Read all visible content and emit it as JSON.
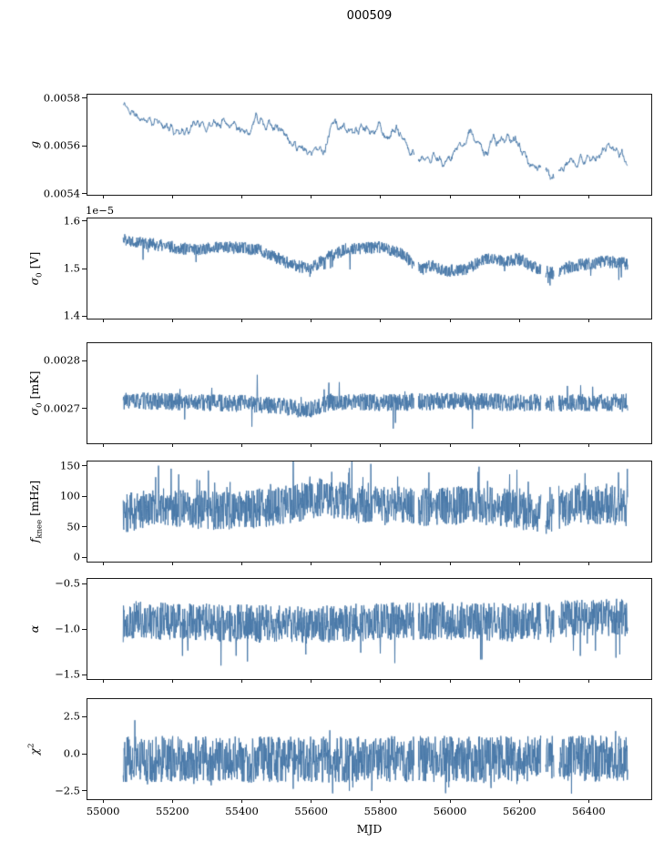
{
  "title": "000509",
  "chart_data": {
    "type": "line",
    "xlabel": "MJD",
    "xlim": [
      54955,
      56580
    ],
    "x_data_range": [
      55058,
      56512
    ],
    "xticks": [
      55000,
      55200,
      55400,
      55600,
      55800,
      56000,
      56200,
      56400
    ],
    "xtick_labels": [
      "55000",
      "55200",
      "55400",
      "55600",
      "55800",
      "56000",
      "56200",
      "56400"
    ],
    "line_color": "#4878a8",
    "grid": false,
    "legend": false,
    "samples_per_panel": 1600,
    "gaps": [
      [
        55897,
        55909
      ],
      [
        56262,
        56275
      ],
      [
        56300,
        56313
      ]
    ],
    "panels": [
      {
        "name": "g",
        "label": {
          "pre": "g",
          "sub": "",
          "sup": "",
          "post": ""
        },
        "offset_label": null,
        "ylim": [
          0.005395,
          0.005815
        ],
        "yticks": [
          0.0054,
          0.0056,
          0.0058
        ],
        "ytick_labels": [
          "0.0054",
          "0.0056",
          "0.0058"
        ],
        "trend": [
          [
            55060,
            0.00577
          ],
          [
            55100,
            0.00572
          ],
          [
            55150,
            0.0057
          ],
          [
            55200,
            0.00567
          ],
          [
            55250,
            0.00566
          ],
          [
            55270,
            0.00571
          ],
          [
            55300,
            0.00568
          ],
          [
            55350,
            0.0057
          ],
          [
            55400,
            0.00569
          ],
          [
            55420,
            0.00564
          ],
          [
            55440,
            0.00573
          ],
          [
            55470,
            0.0057
          ],
          [
            55520,
            0.00566
          ],
          [
            55560,
            0.0056
          ],
          [
            55600,
            0.00558
          ],
          [
            55640,
            0.00559
          ],
          [
            55660,
            0.0057
          ],
          [
            55700,
            0.00566
          ],
          [
            55750,
            0.00567
          ],
          [
            55800,
            0.00568
          ],
          [
            55820,
            0.00563
          ],
          [
            55850,
            0.00567
          ],
          [
            55870,
            0.0056
          ],
          [
            55900,
            0.00554
          ],
          [
            55950,
            0.00555
          ],
          [
            56000,
            0.00554
          ],
          [
            56030,
            0.0056
          ],
          [
            56060,
            0.00566
          ],
          [
            56100,
            0.00557
          ],
          [
            56130,
            0.00562
          ],
          [
            56160,
            0.00563
          ],
          [
            56200,
            0.00561
          ],
          [
            56230,
            0.00552
          ],
          [
            56260,
            0.00551
          ],
          [
            56300,
            0.00547
          ],
          [
            56330,
            0.00552
          ],
          [
            56370,
            0.00553
          ],
          [
            56420,
            0.00555
          ],
          [
            56460,
            0.0056
          ],
          [
            56490,
            0.00558
          ],
          [
            56510,
            0.00553
          ]
        ],
        "noise": 6e-05,
        "smooth": 9,
        "spikes": null,
        "seed": 11
      },
      {
        "name": "sigma0_V",
        "label": {
          "pre": "σ",
          "sub": "0",
          "sup": "",
          "post": " [V]"
        },
        "offset_label": "1e−5",
        "ylim": [
          1.395,
          1.605
        ],
        "yticks": [
          1.4,
          1.5,
          1.6
        ],
        "ytick_labels": [
          "1.4",
          "1.5",
          "1.6"
        ],
        "trend": [
          [
            55060,
            1.562
          ],
          [
            55150,
            1.55
          ],
          [
            55250,
            1.54
          ],
          [
            55350,
            1.545
          ],
          [
            55450,
            1.54
          ],
          [
            55520,
            1.515
          ],
          [
            55560,
            1.505
          ],
          [
            55600,
            1.5
          ],
          [
            55650,
            1.525
          ],
          [
            55700,
            1.54
          ],
          [
            55800,
            1.545
          ],
          [
            55870,
            1.53
          ],
          [
            55900,
            1.5
          ],
          [
            55950,
            1.505
          ],
          [
            56000,
            1.495
          ],
          [
            56050,
            1.5
          ],
          [
            56100,
            1.52
          ],
          [
            56150,
            1.515
          ],
          [
            56200,
            1.52
          ],
          [
            56250,
            1.5
          ],
          [
            56300,
            1.49
          ],
          [
            56350,
            1.505
          ],
          [
            56400,
            1.51
          ],
          [
            56450,
            1.515
          ],
          [
            56510,
            1.51
          ]
        ],
        "noise": 0.013,
        "smooth": 1,
        "spikes": {
          "prob": 0.012,
          "amp": 0.035,
          "sign": -1
        },
        "seed": 22
      },
      {
        "name": "sigma0_mK",
        "label": {
          "pre": "σ",
          "sub": "0",
          "sup": "",
          "post": " [mK]"
        },
        "offset_label": null,
        "ylim": [
          0.002628,
          0.002836
        ],
        "yticks": [
          0.0027,
          0.0028
        ],
        "ytick_labels": [
          "0.0027",
          "0.0028"
        ],
        "trend": [
          [
            55060,
            0.002716
          ],
          [
            55250,
            0.002714
          ],
          [
            55420,
            0.00271
          ],
          [
            55530,
            0.002704
          ],
          [
            55580,
            0.002696
          ],
          [
            55620,
            0.002704
          ],
          [
            55660,
            0.002714
          ],
          [
            55800,
            0.002713
          ],
          [
            55950,
            0.002714
          ],
          [
            56000,
            0.002716
          ],
          [
            56150,
            0.002713
          ],
          [
            56300,
            0.002712
          ],
          [
            56510,
            0.002713
          ]
        ],
        "noise": 1.8e-05,
        "smooth": 1,
        "spikes": {
          "prob": 0.015,
          "amp": 5e-05,
          "sign": 0
        },
        "seed": 33
      },
      {
        "name": "f_knee",
        "label": {
          "pre": "f",
          "sub": "knee",
          "sup": "",
          "post": " [mHz]"
        },
        "offset_label": null,
        "ylim": [
          -7,
          157
        ],
        "yticks": [
          0,
          50,
          100,
          150
        ],
        "ytick_labels": [
          "0",
          "50",
          "100",
          "150"
        ],
        "trend": [
          [
            55060,
            72
          ],
          [
            55150,
            82
          ],
          [
            55250,
            78
          ],
          [
            55350,
            76
          ],
          [
            55450,
            80
          ],
          [
            55550,
            88
          ],
          [
            55620,
            98
          ],
          [
            55680,
            95
          ],
          [
            55750,
            86
          ],
          [
            55850,
            84
          ],
          [
            55950,
            82
          ],
          [
            56050,
            86
          ],
          [
            56150,
            82
          ],
          [
            56220,
            74
          ],
          [
            56280,
            70
          ],
          [
            56350,
            86
          ],
          [
            56450,
            86
          ],
          [
            56510,
            82
          ]
        ],
        "noise": 32,
        "smooth": 1,
        "spikes": {
          "prob": 0.06,
          "amp": 50,
          "sign": 1
        },
        "seed": 44
      },
      {
        "name": "alpha",
        "label": {
          "pre": "α",
          "sub": "",
          "sup": "",
          "post": ""
        },
        "offset_label": null,
        "ylim": [
          -1.55,
          -0.45
        ],
        "yticks": [
          -1.5,
          -1.0,
          -0.5
        ],
        "ytick_labels": [
          "−1.5",
          "−1.0",
          "−0.5"
        ],
        "trend": [
          [
            55060,
            -0.9
          ],
          [
            55300,
            -0.93
          ],
          [
            55600,
            -0.95
          ],
          [
            55800,
            -0.92
          ],
          [
            56000,
            -0.91
          ],
          [
            56200,
            -0.93
          ],
          [
            56350,
            -0.88
          ],
          [
            56510,
            -0.87
          ]
        ],
        "noise": 0.21,
        "smooth": 1,
        "spikes": {
          "prob": 0.02,
          "amp": 0.35,
          "sign": -1
        },
        "seed": 55
      },
      {
        "name": "chi2",
        "label": {
          "pre": "χ",
          "sub": "",
          "sup": "2",
          "post": ""
        },
        "offset_label": null,
        "ylim": [
          -3.05,
          3.66
        ],
        "yticks": [
          -2.5,
          0.0,
          2.5
        ],
        "ytick_labels": [
          "−2.5",
          "0.0",
          "2.5"
        ],
        "trend": [
          [
            55060,
            -0.35
          ],
          [
            55500,
            -0.4
          ],
          [
            56000,
            -0.35
          ],
          [
            56510,
            -0.3
          ]
        ],
        "noise": 1.55,
        "smooth": 1,
        "spikes": {
          "prob": 0.04,
          "amp": 1.1,
          "sign": 0
        },
        "seed": 66
      }
    ]
  }
}
